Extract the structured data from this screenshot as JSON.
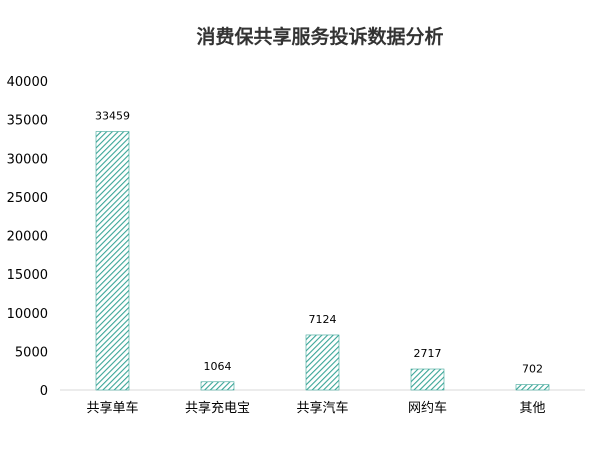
{
  "chart_data": {
    "type": "bar",
    "title": "消费保共享服务投诉数据分析",
    "xlabel": "",
    "ylabel": "",
    "categories": [
      "共享单车",
      "共享充电宝",
      "共享汽车",
      "网约车",
      "其他"
    ],
    "values": [
      33459,
      1064,
      7124,
      2717,
      702
    ],
    "data_labels": [
      "33459",
      "1064",
      "7124",
      "2717",
      "702"
    ],
    "ylim": [
      0,
      40000
    ],
    "yticks": [
      0,
      5000,
      10000,
      15000,
      20000,
      25000,
      30000,
      35000,
      40000
    ],
    "ytick_labels": [
      "0",
      "5000",
      "10000",
      "15000",
      "20000",
      "25000",
      "30000",
      "35000",
      "40000"
    ],
    "grid": false,
    "legend": "none",
    "colors": {
      "bar_hatch": "#3aa597",
      "axis": "#d9d9d9",
      "text": "#000000",
      "title": "#333333"
    },
    "bar_pattern": "diagonal-hatch"
  }
}
